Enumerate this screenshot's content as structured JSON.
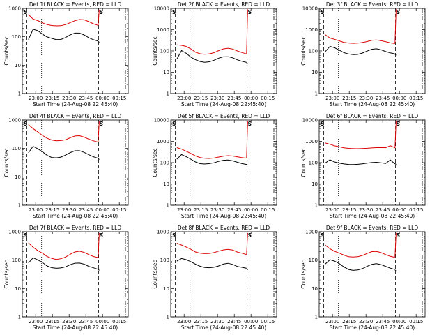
{
  "figure": {
    "xlabel": "Start Time (24-Aug-08 22:45:40)",
    "ylabel": "Counts/sec",
    "x_tick_labels": [
      "23:00",
      "23:15",
      "23:30",
      "23:45",
      "00:00",
      "00:15"
    ],
    "y_tick_labels": [
      "1",
      "10",
      "100",
      "1000",
      "10000"
    ],
    "marker_label": "S",
    "colors": {
      "events": "#000000",
      "lld": "#dd0000"
    }
  },
  "chart_data": [
    {
      "type": "line",
      "title": "Det 1f BLACK = Events, RED = LLD",
      "ylim": [
        1,
        1000
      ],
      "xlim_minutes": [
        -55,
        100
      ],
      "series": [
        {
          "name": "Events",
          "color": "#000000",
          "values": [
            80,
            180,
            160,
            120,
            95,
            85,
            78,
            80,
            95,
            120,
            140,
            140,
            120,
            95,
            80,
            70
          ]
        },
        {
          "name": "LLD",
          "color": "#dd0000",
          "values": [
            600,
            420,
            380,
            320,
            280,
            260,
            250,
            250,
            270,
            310,
            360,
            390,
            380,
            330,
            280,
            250
          ]
        }
      ]
    },
    {
      "type": "line",
      "title": "Det 2f BLACK = Events, RED = LLD",
      "ylim": [
        1,
        10000
      ],
      "xlim_minutes": [
        -55,
        100
      ],
      "series": [
        {
          "name": "Events",
          "color": "#000000",
          "values": [
            40,
            100,
            75,
            50,
            38,
            32,
            30,
            32,
            38,
            48,
            55,
            55,
            48,
            38,
            32,
            28
          ]
        },
        {
          "name": "LLD",
          "color": "#dd0000",
          "values": [
            200,
            190,
            170,
            130,
            90,
            75,
            70,
            72,
            80,
            100,
            120,
            130,
            120,
            100,
            85,
            75
          ]
        }
      ]
    },
    {
      "type": "line",
      "title": "Det 3f BLACK = Events, RED = LLD",
      "ylim": [
        1,
        10000
      ],
      "xlim_minutes": [
        -55,
        100
      ],
      "series": [
        {
          "name": "Events",
          "color": "#000000",
          "values": [
            90,
            160,
            140,
            110,
            85,
            75,
            70,
            72,
            82,
            100,
            120,
            125,
            110,
            90,
            78,
            70
          ]
        },
        {
          "name": "LLD",
          "color": "#dd0000",
          "values": [
            600,
            420,
            360,
            300,
            250,
            230,
            220,
            225,
            240,
            270,
            310,
            330,
            310,
            280,
            250,
            230
          ]
        }
      ]
    },
    {
      "type": "line",
      "title": "Det 4f BLACK = Events, RED = LLD",
      "ylim": [
        1,
        1000
      ],
      "xlim_minutes": [
        -55,
        100
      ],
      "series": [
        {
          "name": "Events",
          "color": "#000000",
          "values": [
            70,
            120,
            100,
            80,
            60,
            50,
            48,
            50,
            58,
            70,
            80,
            80,
            70,
            58,
            50,
            45
          ]
        },
        {
          "name": "LLD",
          "color": "#dd0000",
          "values": [
            700,
            500,
            380,
            280,
            220,
            190,
            180,
            185,
            200,
            240,
            280,
            290,
            260,
            220,
            190,
            170
          ]
        }
      ]
    },
    {
      "type": "line",
      "title": "Det 5f BLACK = Events, RED = LLD",
      "ylim": [
        1,
        10000
      ],
      "xlim_minutes": [
        -55,
        100
      ],
      "series": [
        {
          "name": "Events",
          "color": "#000000",
          "values": [
            150,
            250,
            200,
            150,
            110,
            90,
            85,
            88,
            95,
            110,
            125,
            130,
            120,
            105,
            92,
            85
          ]
        },
        {
          "name": "LLD",
          "color": "#dd0000",
          "values": [
            500,
            420,
            330,
            260,
            200,
            170,
            160,
            160,
            170,
            190,
            210,
            220,
            210,
            190,
            170,
            160
          ]
        }
      ]
    },
    {
      "type": "line",
      "title": "Det 6f BLACK = Events, RED = LLD",
      "ylim": [
        1,
        10000
      ],
      "xlim_minutes": [
        -55,
        100
      ],
      "series": [
        {
          "name": "Events",
          "color": "#000000",
          "values": [
            100,
            140,
            110,
            95,
            85,
            80,
            78,
            80,
            85,
            92,
            100,
            105,
            100,
            95,
            140,
            90
          ]
        },
        {
          "name": "LLD",
          "color": "#dd0000",
          "values": [
            800,
            700,
            600,
            550,
            500,
            480,
            470,
            470,
            480,
            490,
            500,
            510,
            500,
            490,
            600,
            480
          ]
        }
      ]
    },
    {
      "type": "line",
      "title": "Det 7f BLACK = Events, RED = LLD",
      "ylim": [
        1,
        1000
      ],
      "xlim_minutes": [
        -55,
        100
      ],
      "series": [
        {
          "name": "Events",
          "color": "#000000",
          "values": [
            80,
            120,
            100,
            80,
            60,
            52,
            50,
            52,
            58,
            70,
            80,
            82,
            75,
            62,
            55,
            48
          ]
        },
        {
          "name": "LLD",
          "color": "#dd0000",
          "values": [
            400,
            280,
            220,
            180,
            140,
            120,
            110,
            115,
            130,
            160,
            190,
            200,
            180,
            150,
            130,
            120
          ]
        }
      ]
    },
    {
      "type": "line",
      "title": "Det 8f BLACK = Events, RED = LLD",
      "ylim": [
        1,
        1000
      ],
      "xlim_minutes": [
        -55,
        100
      ],
      "series": [
        {
          "name": "Events",
          "color": "#000000",
          "values": [
            90,
            110,
            100,
            85,
            70,
            60,
            55,
            55,
            58,
            65,
            75,
            80,
            72,
            60,
            55,
            50
          ]
        },
        {
          "name": "LLD",
          "color": "#dd0000",
          "values": [
            400,
            350,
            300,
            250,
            200,
            180,
            170,
            170,
            180,
            200,
            220,
            230,
            220,
            190,
            175,
            160
          ]
        }
      ]
    },
    {
      "type": "line",
      "title": "Det 9f BLACK = Events, RED = LLD",
      "ylim": [
        1,
        1000
      ],
      "xlim_minutes": [
        -55,
        100
      ],
      "series": [
        {
          "name": "Events",
          "color": "#000000",
          "values": [
            70,
            100,
            90,
            75,
            58,
            48,
            45,
            47,
            52,
            62,
            72,
            75,
            68,
            58,
            50,
            45
          ]
        },
        {
          "name": "LLD",
          "color": "#dd0000",
          "values": [
            350,
            260,
            210,
            180,
            150,
            130,
            125,
            128,
            140,
            165,
            195,
            200,
            185,
            160,
            140,
            130
          ]
        }
      ]
    }
  ]
}
